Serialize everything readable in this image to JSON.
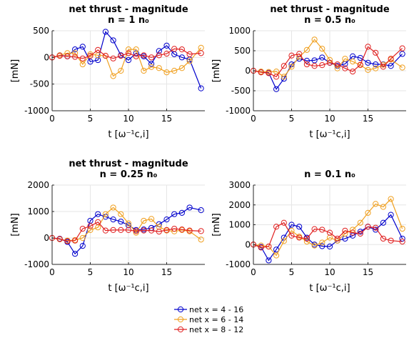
{
  "chart_data": [
    {
      "type": "line",
      "title": "net thrust - magnitude",
      "subtitle": "n = 1 n₀",
      "ylabel": "[mN]",
      "xlabel": "t [ω⁻¹c,i]",
      "xlim": [
        0,
        20
      ],
      "ylim": [
        -1000,
        500
      ],
      "xticks": [
        0,
        5,
        10,
        15
      ],
      "yticks": [
        500,
        0,
        -500,
        -1000
      ],
      "grid": true,
      "series": [
        {
          "name": "net x = 4 - 16",
          "color": "#0000cc",
          "x": [
            0,
            1,
            2,
            3,
            4,
            5,
            6,
            7,
            8,
            9,
            10,
            11,
            12,
            13,
            14,
            15,
            16,
            17,
            18,
            19.5
          ],
          "y": [
            0,
            40,
            20,
            150,
            200,
            -80,
            -50,
            480,
            320,
            40,
            -50,
            80,
            20,
            -120,
            120,
            220,
            60,
            0,
            -40,
            -580
          ]
        },
        {
          "name": "net x = 6 - 14",
          "color": "#f0a020",
          "x": [
            0,
            1,
            2,
            3,
            4,
            5,
            6,
            7,
            8,
            9,
            10,
            11,
            12,
            13,
            14,
            15,
            16,
            17,
            18,
            19.5
          ],
          "y": [
            0,
            40,
            80,
            80,
            -130,
            60,
            40,
            30,
            -350,
            -250,
            150,
            150,
            -250,
            -180,
            -200,
            -280,
            -250,
            -200,
            -70,
            180
          ]
        },
        {
          "name": "net x = 8 - 12",
          "color": "#e02020",
          "x": [
            0,
            1,
            2,
            3,
            4,
            5,
            6,
            7,
            8,
            9,
            10,
            11,
            12,
            13,
            14,
            15,
            16,
            17,
            18,
            19.5
          ],
          "y": [
            0,
            30,
            20,
            10,
            -20,
            30,
            140,
            30,
            -20,
            30,
            80,
            20,
            40,
            0,
            40,
            70,
            160,
            150,
            60,
            80
          ]
        }
      ]
    },
    {
      "type": "line",
      "title": "net thrust - magnitude",
      "subtitle": "n = 0.5 n₀",
      "ylabel": "[mN]",
      "xlabel": "t [ω⁻¹c,i]",
      "xlim": [
        0,
        20
      ],
      "ylim": [
        -1000,
        1000
      ],
      "xticks": [
        0,
        5,
        10,
        15
      ],
      "yticks": [
        1000,
        500,
        0,
        -500,
        -1000
      ],
      "grid": true,
      "series": [
        {
          "name": "net x = 4 - 16",
          "color": "#0000cc",
          "x": [
            0,
            1,
            2,
            3,
            4,
            5,
            6,
            7,
            8,
            9,
            10,
            11,
            12,
            13,
            14,
            15,
            16,
            17,
            18,
            19.5
          ],
          "y": [
            0,
            -30,
            -50,
            -460,
            -200,
            160,
            300,
            250,
            260,
            330,
            200,
            120,
            170,
            360,
            320,
            200,
            160,
            160,
            120,
            420
          ]
        },
        {
          "name": "net x = 6 - 14",
          "color": "#f0a020",
          "x": [
            0,
            1,
            2,
            3,
            4,
            5,
            6,
            7,
            8,
            9,
            10,
            11,
            12,
            13,
            14,
            15,
            16,
            17,
            18,
            19.5
          ],
          "y": [
            0,
            -20,
            -30,
            -20,
            -150,
            100,
            350,
            520,
            780,
            550,
            270,
            60,
            300,
            230,
            140,
            20,
            60,
            150,
            280,
            80
          ]
        },
        {
          "name": "net x = 8 - 12",
          "color": "#e02020",
          "x": [
            0,
            1,
            2,
            3,
            4,
            5,
            6,
            7,
            8,
            9,
            10,
            11,
            12,
            13,
            14,
            15,
            16,
            17,
            18,
            19.5
          ],
          "y": [
            0,
            -40,
            -60,
            -150,
            120,
            380,
            420,
            160,
            120,
            140,
            200,
            160,
            60,
            -20,
            150,
            600,
            450,
            100,
            300,
            560
          ]
        }
      ]
    },
    {
      "type": "line",
      "title": "net thrust - magnitude",
      "subtitle": "n = 0.25 n₀",
      "ylabel": "[mN]",
      "xlabel": "t [ω⁻¹c,i]",
      "xlim": [
        0,
        20
      ],
      "ylim": [
        -1000,
        2000
      ],
      "xticks": [
        0,
        5,
        10,
        15
      ],
      "yticks": [
        2000,
        1000,
        0,
        -1000
      ],
      "grid": true,
      "series": [
        {
          "name": "net x = 4 - 16",
          "color": "#0000cc",
          "x": [
            0,
            1,
            2,
            3,
            4,
            5,
            6,
            7,
            8,
            9,
            10,
            11,
            12,
            13,
            14,
            15,
            16,
            17,
            18,
            19.5
          ],
          "y": [
            0,
            -30,
            -150,
            -600,
            -300,
            650,
            900,
            800,
            700,
            620,
            480,
            300,
            320,
            380,
            520,
            700,
            900,
            950,
            1150,
            1050
          ]
        },
        {
          "name": "net x = 6 - 14",
          "color": "#f0a020",
          "x": [
            0,
            1,
            2,
            3,
            4,
            5,
            6,
            7,
            8,
            9,
            10,
            11,
            12,
            13,
            14,
            15,
            16,
            17,
            18,
            19.5
          ],
          "y": [
            0,
            -50,
            -100,
            -80,
            0,
            300,
            400,
            900,
            1150,
            900,
            550,
            200,
            650,
            720,
            420,
            280,
            250,
            300,
            250,
            -60
          ]
        },
        {
          "name": "net x = 8 - 12",
          "color": "#e02020",
          "x": [
            0,
            1,
            2,
            3,
            4,
            5,
            6,
            7,
            8,
            9,
            10,
            11,
            12,
            13,
            14,
            15,
            16,
            17,
            18,
            19.5
          ],
          "y": [
            0,
            -40,
            -120,
            -100,
            350,
            450,
            600,
            280,
            300,
            300,
            300,
            260,
            280,
            280,
            240,
            300,
            350,
            320,
            280,
            260
          ]
        }
      ]
    },
    {
      "type": "line",
      "title": "",
      "subtitle": "n = 0.1 n₀",
      "ylabel": "[mN]",
      "xlabel": "t [ω⁻¹c,i]",
      "xlim": [
        0,
        20
      ],
      "ylim": [
        -1000,
        3000
      ],
      "xticks": [
        0,
        5,
        10,
        15
      ],
      "yticks": [
        3000,
        2000,
        1000,
        0,
        -1000
      ],
      "grid": true,
      "series": [
        {
          "name": "net x = 4 - 16",
          "color": "#0000cc",
          "x": [
            0,
            1,
            2,
            3,
            4,
            5,
            6,
            7,
            8,
            9,
            10,
            11,
            12,
            13,
            14,
            15,
            16,
            17,
            18,
            19.5
          ],
          "y": [
            0,
            -120,
            -800,
            -250,
            350,
            1000,
            900,
            350,
            0,
            -80,
            -100,
            200,
            300,
            450,
            650,
            900,
            750,
            1100,
            1500,
            300
          ]
        },
        {
          "name": "net x = 6 - 14",
          "color": "#f0a020",
          "x": [
            0,
            1,
            2,
            3,
            4,
            5,
            6,
            7,
            8,
            9,
            10,
            11,
            12,
            13,
            14,
            15,
            16,
            17,
            18,
            19.5
          ],
          "y": [
            0,
            -50,
            -100,
            -550,
            180,
            700,
            400,
            150,
            -50,
            100,
            350,
            200,
            550,
            750,
            1100,
            1600,
            2050,
            1900,
            2300,
            800
          ]
        },
        {
          "name": "net x = 8 - 12",
          "color": "#e02020",
          "x": [
            0,
            1,
            2,
            3,
            4,
            5,
            6,
            7,
            8,
            9,
            10,
            11,
            12,
            13,
            14,
            15,
            16,
            17,
            18,
            19.5
          ],
          "y": [
            0,
            -150,
            -100,
            900,
            1100,
            450,
            350,
            300,
            780,
            750,
            600,
            300,
            700,
            600,
            550,
            900,
            850,
            300,
            200,
            150
          ]
        }
      ]
    }
  ],
  "legend": {
    "position": "bottom-center",
    "entries": [
      {
        "label": "net x = 4 - 16",
        "color": "#0000cc"
      },
      {
        "label": "net x = 6 - 14",
        "color": "#f0a020"
      },
      {
        "label": "net x = 8 - 12",
        "color": "#e02020"
      }
    ]
  }
}
